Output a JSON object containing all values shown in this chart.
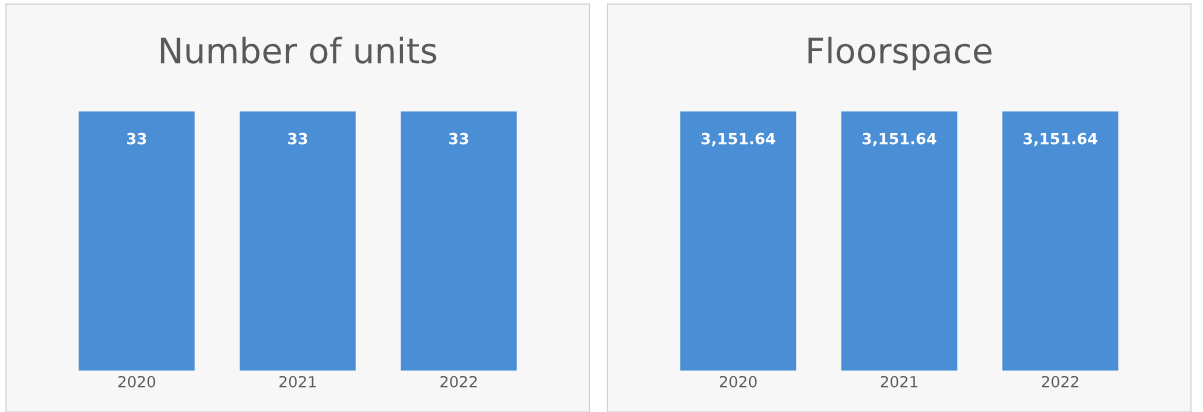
{
  "chart_data": [
    {
      "type": "bar",
      "title": "Number of units",
      "categories": [
        "2020",
        "2021",
        "2022"
      ],
      "values": [
        33,
        33,
        33
      ],
      "color": "#4a8fd6",
      "data_labels": true,
      "value_labels": [
        "33",
        "33",
        "33"
      ],
      "tick_labels": "x",
      "grid": false
    },
    {
      "type": "bar",
      "title": "Floorspace",
      "categories": [
        "2020",
        "2021",
        "2022"
      ],
      "values": [
        3151.64,
        3151.64,
        3151.64
      ],
      "color": "#4a8fd6",
      "data_labels": true,
      "value_labels": [
        "3,151.64",
        "3,151.64",
        "3,151.64"
      ],
      "tick_labels": "x",
      "grid": false
    }
  ]
}
